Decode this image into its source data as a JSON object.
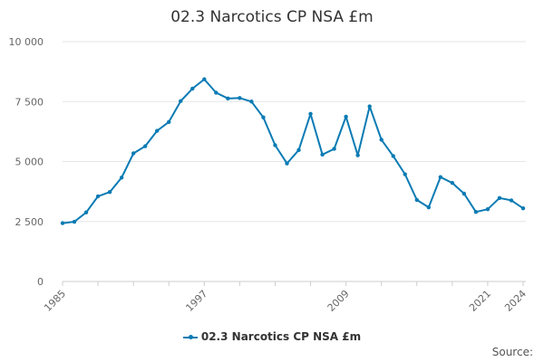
{
  "colors": {
    "series": "#0a7bb4",
    "grid": "#e6e6e6",
    "axis": "#cccccc",
    "text": "#666666"
  },
  "chart_data": {
    "type": "line",
    "title": "02.3 Narcotics CP NSA £m",
    "x_tick_labels": [
      "1985",
      "1997",
      "2009",
      "2021",
      "2024"
    ],
    "x_ticks": [
      1985,
      1997,
      2009,
      2021,
      2024
    ],
    "xlim": [
      1985,
      2024
    ],
    "y_tick_labels": [
      "0",
      "2 500",
      "5 000",
      "7 500",
      "10 000"
    ],
    "y_ticks": [
      0,
      2500,
      5000,
      7500,
      10000
    ],
    "ylim": [
      0,
      10000
    ],
    "grid": true,
    "legend_position": "bottom-center",
    "series": [
      {
        "name": "02.3 Narcotics CP NSA £m",
        "x": [
          1985,
          1986,
          1987,
          1988,
          1989,
          1990,
          1991,
          1992,
          1993,
          1994,
          1995,
          1996,
          1997,
          1998,
          1999,
          2000,
          2001,
          2002,
          2003,
          2004,
          2005,
          2006,
          2007,
          2008,
          2009,
          2010,
          2011,
          2012,
          2013,
          2014,
          2015,
          2016,
          2017,
          2018,
          2019,
          2020,
          2021,
          2022,
          2023,
          2024
        ],
        "values": [
          2430,
          2490,
          2880,
          3550,
          3730,
          4330,
          5340,
          5640,
          6280,
          6650,
          7520,
          8040,
          8430,
          7870,
          7630,
          7650,
          7500,
          6840,
          5680,
          4920,
          5480,
          6990,
          5290,
          5530,
          6870,
          5260,
          7300,
          5910,
          5230,
          4470,
          3400,
          3090,
          4350,
          4110,
          3660,
          2900,
          3010,
          3480,
          3380,
          3050
        ]
      }
    ]
  },
  "legend": {
    "label": "02.3 Narcotics CP NSA £m"
  },
  "source_label": "Source:"
}
